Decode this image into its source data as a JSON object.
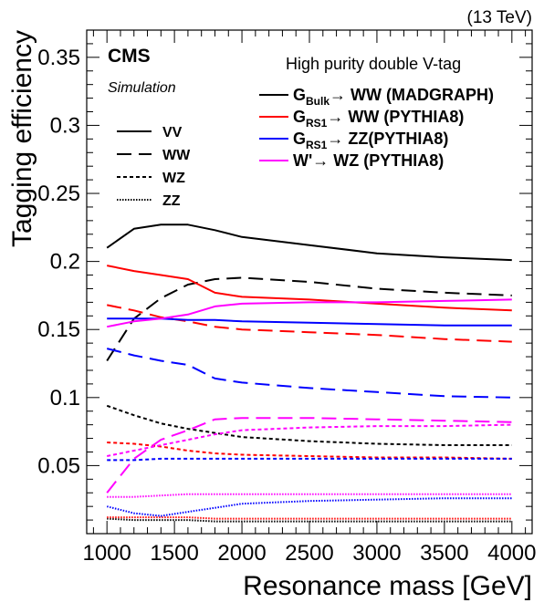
{
  "chart_data": {
    "type": "line",
    "title": "",
    "energy_label": "(13 TeV)",
    "experiment_label": "CMS",
    "subtitle": "Simulation",
    "selection_label": "High purity double V-tag",
    "xlabel": "Resonance mass [GeV]",
    "ylabel": "Tagging efficiency",
    "xlim": [
      850,
      4150
    ],
    "ylim": [
      0,
      0.37
    ],
    "xticks": [
      "1000",
      "1500",
      "2000",
      "2500",
      "3000",
      "3500",
      "4000"
    ],
    "yticks": [
      "0.05",
      "0.1",
      "0.15",
      "0.2",
      "0.25",
      "0.3",
      "0.35"
    ],
    "grid": false,
    "signal_legend": [
      {
        "key": "bulk",
        "pre": "G",
        "sub": "Bulk",
        "post": "→ WW (MADGRAPH)",
        "color": "#000000"
      },
      {
        "key": "rs1ww",
        "pre": "G",
        "sub": "RS1",
        "post": "→ WW (PYTHIA8)",
        "color": "#ff0000"
      },
      {
        "key": "rs1zz",
        "pre": "G",
        "sub": "RS1",
        "post": "→ ZZ(PYTHIA8)",
        "color": "#0000ff"
      },
      {
        "key": "wprime",
        "pre": "W'",
        "sub": "",
        "post": "→ WZ (PYTHIA8)",
        "color": "#ff00ff"
      }
    ],
    "category_legend": [
      {
        "label": "VV",
        "dash": "solid"
      },
      {
        "label": "WW",
        "dash": "longdash"
      },
      {
        "label": "WZ",
        "dash": "dashed"
      },
      {
        "label": "ZZ",
        "dash": "dotted"
      }
    ],
    "series": [
      {
        "model": "bulk",
        "category": "VV",
        "x": [
          1000,
          1200,
          1400,
          1600,
          1800,
          2000,
          2500,
          3000,
          3500,
          4000
        ],
        "values": [
          0.21,
          0.224,
          0.227,
          0.227,
          0.223,
          0.218,
          0.212,
          0.206,
          0.203,
          0.201
        ]
      },
      {
        "model": "bulk",
        "category": "WW",
        "x": [
          1000,
          1200,
          1400,
          1600,
          1800,
          2000,
          2500,
          3000,
          3500,
          4000
        ],
        "values": [
          0.127,
          0.158,
          0.173,
          0.183,
          0.187,
          0.188,
          0.185,
          0.18,
          0.177,
          0.175
        ]
      },
      {
        "model": "bulk",
        "category": "WZ",
        "x": [
          1000,
          1200,
          1400,
          1600,
          1800,
          2000,
          2500,
          3000,
          3500,
          4000
        ],
        "values": [
          0.094,
          0.087,
          0.081,
          0.077,
          0.074,
          0.071,
          0.068,
          0.066,
          0.065,
          0.065
        ]
      },
      {
        "model": "bulk",
        "category": "ZZ",
        "x": [
          1000,
          1200,
          1400,
          1600,
          1800,
          2000,
          2500,
          3000,
          3500,
          4000
        ],
        "values": [
          0.011,
          0.01,
          0.01,
          0.01,
          0.009,
          0.009,
          0.009,
          0.009,
          0.009,
          0.009
        ]
      },
      {
        "model": "rs1ww",
        "category": "VV",
        "x": [
          1000,
          1200,
          1400,
          1600,
          1800,
          2000,
          2500,
          3000,
          3500,
          4000
        ],
        "values": [
          0.197,
          0.193,
          0.19,
          0.187,
          0.177,
          0.174,
          0.172,
          0.169,
          0.166,
          0.164
        ]
      },
      {
        "model": "rs1ww",
        "category": "WW",
        "x": [
          1000,
          1200,
          1400,
          1600,
          1800,
          2000,
          2500,
          3000,
          3500,
          4000
        ],
        "values": [
          0.168,
          0.164,
          0.159,
          0.156,
          0.152,
          0.15,
          0.148,
          0.146,
          0.143,
          0.141
        ]
      },
      {
        "model": "rs1ww",
        "category": "WZ",
        "x": [
          1000,
          1200,
          1400,
          1600,
          1800,
          2000,
          2500,
          3000,
          3500,
          4000
        ],
        "values": [
          0.067,
          0.066,
          0.064,
          0.061,
          0.059,
          0.058,
          0.057,
          0.056,
          0.056,
          0.055
        ]
      },
      {
        "model": "rs1ww",
        "category": "ZZ",
        "x": [
          1000,
          1200,
          1400,
          1600,
          1800,
          2000,
          2500,
          3000,
          3500,
          4000
        ],
        "values": [
          0.012,
          0.012,
          0.012,
          0.012,
          0.011,
          0.011,
          0.011,
          0.011,
          0.011,
          0.011
        ]
      },
      {
        "model": "rs1zz",
        "category": "VV",
        "x": [
          1000,
          1200,
          1400,
          1600,
          1800,
          2000,
          2500,
          3000,
          3500,
          4000
        ],
        "values": [
          0.158,
          0.158,
          0.158,
          0.157,
          0.157,
          0.156,
          0.155,
          0.154,
          0.153,
          0.153
        ]
      },
      {
        "model": "rs1zz",
        "category": "WW",
        "x": [
          1000,
          1200,
          1400,
          1600,
          1800,
          2000,
          2500,
          3000,
          3500,
          4000
        ],
        "values": [
          0.136,
          0.131,
          0.127,
          0.124,
          0.114,
          0.111,
          0.107,
          0.104,
          0.101,
          0.1
        ]
      },
      {
        "model": "rs1zz",
        "category": "WZ",
        "x": [
          1000,
          1200,
          1400,
          1600,
          1800,
          2000,
          2500,
          3000,
          3500,
          4000
        ],
        "values": [
          0.054,
          0.054,
          0.055,
          0.055,
          0.055,
          0.055,
          0.055,
          0.055,
          0.055,
          0.055
        ]
      },
      {
        "model": "rs1zz",
        "category": "ZZ",
        "x": [
          1000,
          1200,
          1400,
          1600,
          1800,
          2000,
          2500,
          3000,
          3500,
          4000
        ],
        "values": [
          0.02,
          0.015,
          0.013,
          0.016,
          0.019,
          0.022,
          0.024,
          0.025,
          0.026,
          0.026
        ]
      },
      {
        "model": "wprime",
        "category": "VV",
        "x": [
          1000,
          1200,
          1400,
          1600,
          1800,
          2000,
          2500,
          3000,
          3500,
          4000
        ],
        "values": [
          0.152,
          0.156,
          0.158,
          0.161,
          0.167,
          0.169,
          0.17,
          0.17,
          0.171,
          0.172
        ]
      },
      {
        "model": "wprime",
        "category": "WW",
        "x": [
          1000,
          1200,
          1400,
          1600,
          1800,
          2000,
          2500,
          3000,
          3500,
          4000
        ],
        "values": [
          0.03,
          0.055,
          0.069,
          0.076,
          0.084,
          0.085,
          0.085,
          0.084,
          0.083,
          0.082
        ]
      },
      {
        "model": "wprime",
        "category": "WZ",
        "x": [
          1000,
          1200,
          1400,
          1600,
          1800,
          2000,
          2500,
          3000,
          3500,
          4000
        ],
        "values": [
          0.057,
          0.061,
          0.065,
          0.069,
          0.073,
          0.076,
          0.078,
          0.079,
          0.079,
          0.08
        ]
      },
      {
        "model": "wprime",
        "category": "ZZ",
        "x": [
          1000,
          1200,
          1400,
          1600,
          1800,
          2000,
          2500,
          3000,
          3500,
          4000
        ],
        "values": [
          0.027,
          0.027,
          0.028,
          0.029,
          0.029,
          0.029,
          0.029,
          0.029,
          0.029,
          0.029
        ]
      }
    ]
  }
}
